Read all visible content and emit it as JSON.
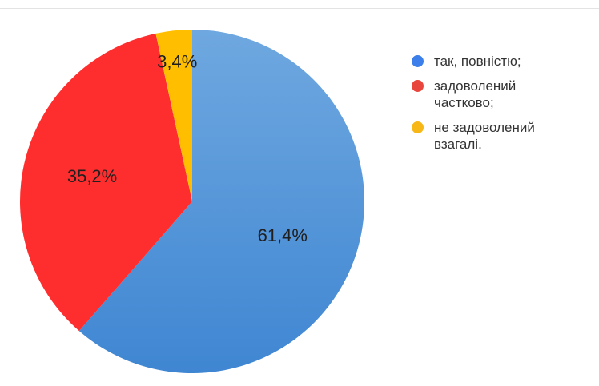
{
  "chart_data": {
    "type": "pie",
    "title": "",
    "legend_position": "right",
    "slices": [
      {
        "label": "так, повністю;",
        "value": 61.4,
        "value_label": "61,4%",
        "color": "#4a90d9"
      },
      {
        "label": "задоволений частково;",
        "value": 35.2,
        "value_label": "35,2%",
        "color": "#fe2e2e"
      },
      {
        "label": "не задоволений взагалі.",
        "value": 3.4,
        "value_label": "3,4%",
        "color": "#ffbf00"
      }
    ]
  },
  "legend": {
    "items": [
      {
        "label": "так, повністю;",
        "color": "#3d7fea"
      },
      {
        "label": "задоволений частково;",
        "color": "#e8463c"
      },
      {
        "label": "не задоволений взагалі.",
        "color": "#f7b817"
      }
    ]
  }
}
